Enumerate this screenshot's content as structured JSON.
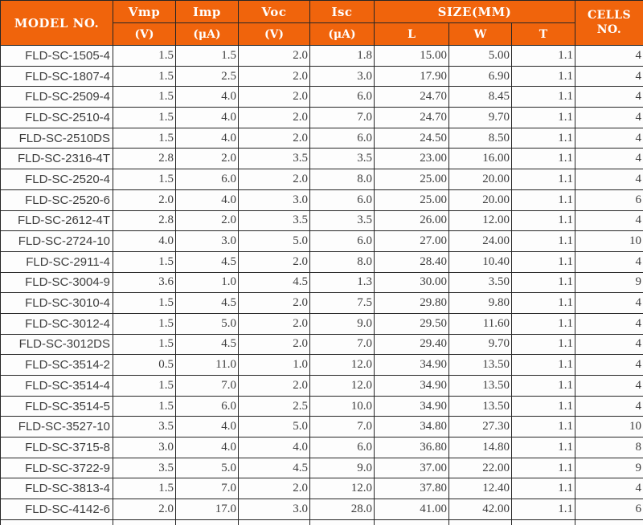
{
  "colors": {
    "header_bg": "#F0640C",
    "header_text": "#FFFFFF",
    "border": "#262626",
    "row_text": "#3D3D3D"
  },
  "table": {
    "header": {
      "model_label": "MODEL NO.",
      "electrical_cols": [
        {
          "label": "Vmp",
          "unit": "(V)"
        },
        {
          "label": "Imp",
          "unit": "(μA)"
        },
        {
          "label": "Voc",
          "unit": "(V)"
        },
        {
          "label": "Isc",
          "unit": "(μA)"
        }
      ],
      "size_group_label": "SIZE(MM)",
      "size_subcols": [
        "L",
        "W",
        "T"
      ],
      "cells_label_line1": "CELLS",
      "cells_label_line2": "NO."
    },
    "rows": [
      [
        "FLD-SC-1505-4",
        "1.5",
        "1.5",
        "2.0",
        "1.8",
        "15.00",
        "5.00",
        "1.1",
        "4"
      ],
      [
        "FLD-SC-1807-4",
        "1.5",
        "2.5",
        "2.0",
        "3.0",
        "17.90",
        "6.90",
        "1.1",
        "4"
      ],
      [
        "FLD-SC-2509-4",
        "1.5",
        "4.0",
        "2.0",
        "6.0",
        "24.70",
        "8.45",
        "1.1",
        "4"
      ],
      [
        "FLD-SC-2510-4",
        "1.5",
        "4.0",
        "2.0",
        "7.0",
        "24.70",
        "9.70",
        "1.1",
        "4"
      ],
      [
        "FLD-SC-2510DS",
        "1.5",
        "4.0",
        "2.0",
        "6.0",
        "24.50",
        "8.50",
        "1.1",
        "4"
      ],
      [
        "FLD-SC-2316-4T",
        "2.8",
        "2.0",
        "3.5",
        "3.5",
        "23.00",
        "16.00",
        "1.1",
        "4"
      ],
      [
        "FLD-SC-2520-4",
        "1.5",
        "6.0",
        "2.0",
        "8.0",
        "25.00",
        "20.00",
        "1.1",
        "4"
      ],
      [
        "FLD-SC-2520-6",
        "2.0",
        "4.0",
        "3.0",
        "6.0",
        "25.00",
        "20.00",
        "1.1",
        "6"
      ],
      [
        "FLD-SC-2612-4T",
        "2.8",
        "2.0",
        "3.5",
        "3.5",
        "26.00",
        "12.00",
        "1.1",
        "4"
      ],
      [
        "FLD-SC-2724-10",
        "4.0",
        "3.0",
        "5.0",
        "6.0",
        "27.00",
        "24.00",
        "1.1",
        "10"
      ],
      [
        "FLD-SC-2911-4",
        "1.5",
        "4.5",
        "2.0",
        "8.0",
        "28.40",
        "10.40",
        "1.1",
        "4"
      ],
      [
        "FLD-SC-3004-9",
        "3.6",
        "1.0",
        "4.5",
        "1.3",
        "30.00",
        "3.50",
        "1.1",
        "9"
      ],
      [
        "FLD-SC-3010-4",
        "1.5",
        "4.5",
        "2.0",
        "7.5",
        "29.80",
        "9.80",
        "1.1",
        "4"
      ],
      [
        "FLD-SC-3012-4",
        "1.5",
        "5.0",
        "2.0",
        "9.0",
        "29.50",
        "11.60",
        "1.1",
        "4"
      ],
      [
        "FLD-SC-3012DS",
        "1.5",
        "4.5",
        "2.0",
        "7.0",
        "29.40",
        "9.70",
        "1.1",
        "4"
      ],
      [
        "FLD-SC-3514-2",
        "0.5",
        "11.0",
        "1.0",
        "12.0",
        "34.90",
        "13.50",
        "1.1",
        "4"
      ],
      [
        "FLD-SC-3514-4",
        "1.5",
        "7.0",
        "2.0",
        "12.0",
        "34.90",
        "13.50",
        "1.1",
        "4"
      ],
      [
        "FLD-SC-3514-5",
        "1.5",
        "6.0",
        "2.5",
        "10.0",
        "34.90",
        "13.50",
        "1.1",
        "4"
      ],
      [
        "FLD-SC-3527-10",
        "3.5",
        "4.0",
        "5.0",
        "7.0",
        "34.80",
        "27.30",
        "1.1",
        "10"
      ],
      [
        "FLD-SC-3715-8",
        "3.0",
        "4.0",
        "4.0",
        "6.0",
        "36.80",
        "14.80",
        "1.1",
        "8"
      ],
      [
        "FLD-SC-3722-9",
        "3.5",
        "5.0",
        "4.5",
        "9.0",
        "37.00",
        "22.00",
        "1.1",
        "9"
      ],
      [
        "FLD-SC-3813-4",
        "1.5",
        "7.0",
        "2.0",
        "12.0",
        "37.80",
        "12.40",
        "1.1",
        "4"
      ],
      [
        "FLD-SC-4142-6",
        "2.0",
        "17.0",
        "3.0",
        "28.0",
        "41.00",
        "42.00",
        "1.1",
        "6"
      ]
    ]
  }
}
